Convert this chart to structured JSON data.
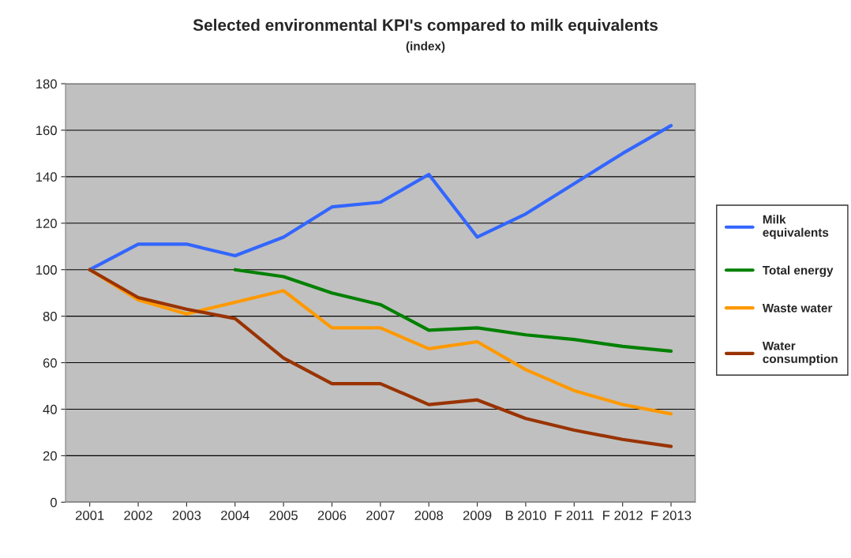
{
  "chart_data": {
    "type": "line",
    "title": "Selected environmental KPI's compared to milk equivalents",
    "subtitle": "(index)",
    "categories": [
      "2001",
      "2002",
      "2003",
      "2004",
      "2005",
      "2006",
      "2007",
      "2008",
      "2009",
      "B 2010",
      "F 2011",
      "F 2012",
      "F 2013"
    ],
    "series": [
      {
        "name": "Milk equivalents",
        "color": "#3366ff",
        "values": [
          100,
          111,
          111,
          106,
          114,
          127,
          129,
          141,
          114,
          124,
          137,
          150,
          162
        ]
      },
      {
        "name": "Total energy",
        "color": "#008000",
        "values": [
          null,
          null,
          null,
          100,
          97,
          90,
          85,
          74,
          75,
          72,
          70,
          67,
          65
        ]
      },
      {
        "name": "Waste water",
        "color": "#ff9900",
        "values": [
          100,
          87,
          81,
          86,
          91,
          75,
          75,
          66,
          69,
          57,
          48,
          42,
          38
        ]
      },
      {
        "name": "Water consumption",
        "color": "#993300",
        "values": [
          100,
          88,
          83,
          79,
          62,
          51,
          51,
          42,
          44,
          36,
          31,
          27,
          24
        ]
      }
    ],
    "ylim": [
      0,
      180
    ],
    "yticks": [
      0,
      20,
      40,
      60,
      80,
      100,
      120,
      140,
      160,
      180
    ],
    "grid": "y",
    "legend": "right",
    "marker": "none",
    "line_style": "solid"
  }
}
